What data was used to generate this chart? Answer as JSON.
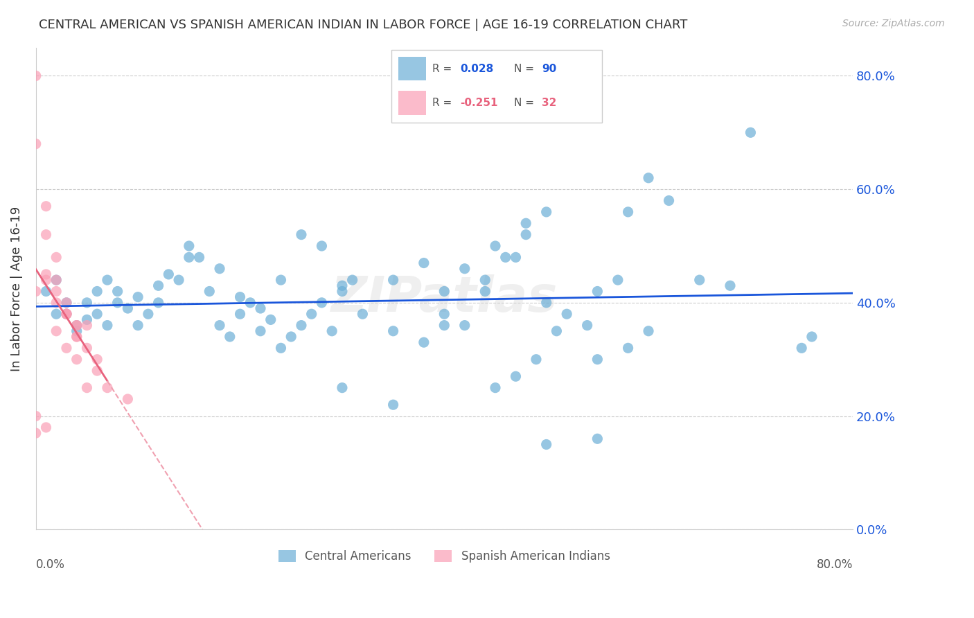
{
  "title": "CENTRAL AMERICAN VS SPANISH AMERICAN INDIAN IN LABOR FORCE | AGE 16-19 CORRELATION CHART",
  "source": "Source: ZipAtlas.com",
  "ylabel": "In Labor Force | Age 16-19",
  "ytick_values": [
    0.0,
    0.2,
    0.4,
    0.6,
    0.8
  ],
  "xlim": [
    0,
    0.8
  ],
  "ylim": [
    0,
    0.85
  ],
  "blue_R": 0.028,
  "blue_N": 90,
  "pink_R": -0.251,
  "pink_N": 32,
  "legend_label_blue": "Central Americans",
  "legend_label_pink": "Spanish American Indians",
  "blue_color": "#6baed6",
  "pink_color": "#fa9fb5",
  "blue_line_color": "#1a56db",
  "pink_line_color": "#e8627d",
  "pink_dash_color": "#f0a0b0",
  "watermark": "ZIPatlas",
  "blue_scatter_x": [
    0.02,
    0.03,
    0.01,
    0.04,
    0.05,
    0.02,
    0.03,
    0.04,
    0.05,
    0.06,
    0.07,
    0.08,
    0.06,
    0.07,
    0.08,
    0.09,
    0.1,
    0.11,
    0.12,
    0.13,
    0.1,
    0.12,
    0.14,
    0.15,
    0.16,
    0.17,
    0.18,
    0.19,
    0.2,
    0.21,
    0.22,
    0.23,
    0.24,
    0.25,
    0.26,
    0.27,
    0.28,
    0.29,
    0.3,
    0.31,
    0.15,
    0.18,
    0.2,
    0.22,
    0.24,
    0.26,
    0.28,
    0.3,
    0.32,
    0.35,
    0.38,
    0.4,
    0.35,
    0.38,
    0.4,
    0.42,
    0.44,
    0.45,
    0.47,
    0.48,
    0.4,
    0.42,
    0.44,
    0.46,
    0.48,
    0.5,
    0.45,
    0.47,
    0.49,
    0.51,
    0.5,
    0.52,
    0.54,
    0.55,
    0.57,
    0.6,
    0.62,
    0.55,
    0.58,
    0.6,
    0.65,
    0.68,
    0.7,
    0.3,
    0.35,
    0.5,
    0.55,
    0.58,
    0.75,
    0.76
  ],
  "blue_scatter_y": [
    0.38,
    0.4,
    0.42,
    0.36,
    0.4,
    0.44,
    0.38,
    0.35,
    0.37,
    0.42,
    0.44,
    0.4,
    0.38,
    0.36,
    0.42,
    0.39,
    0.41,
    0.38,
    0.43,
    0.45,
    0.36,
    0.4,
    0.44,
    0.5,
    0.48,
    0.42,
    0.36,
    0.34,
    0.38,
    0.4,
    0.35,
    0.37,
    0.32,
    0.34,
    0.36,
    0.38,
    0.4,
    0.35,
    0.42,
    0.44,
    0.48,
    0.46,
    0.41,
    0.39,
    0.44,
    0.52,
    0.5,
    0.43,
    0.38,
    0.35,
    0.33,
    0.36,
    0.44,
    0.47,
    0.42,
    0.46,
    0.44,
    0.5,
    0.48,
    0.52,
    0.38,
    0.36,
    0.42,
    0.48,
    0.54,
    0.56,
    0.25,
    0.27,
    0.3,
    0.35,
    0.4,
    0.38,
    0.36,
    0.42,
    0.44,
    0.62,
    0.58,
    0.3,
    0.32,
    0.35,
    0.44,
    0.43,
    0.7,
    0.25,
    0.22,
    0.15,
    0.16,
    0.56,
    0.32,
    0.34
  ],
  "pink_scatter_x": [
    0.0,
    0.0,
    0.01,
    0.01,
    0.02,
    0.02,
    0.03,
    0.03,
    0.04,
    0.04,
    0.0,
    0.01,
    0.02,
    0.03,
    0.04,
    0.05,
    0.0,
    0.01,
    0.02,
    0.03,
    0.04,
    0.05,
    0.06,
    0.01,
    0.02,
    0.03,
    0.04,
    0.05,
    0.06,
    0.07,
    0.09,
    0.0
  ],
  "pink_scatter_y": [
    0.8,
    0.68,
    0.52,
    0.57,
    0.44,
    0.48,
    0.4,
    0.38,
    0.36,
    0.34,
    0.2,
    0.18,
    0.35,
    0.32,
    0.3,
    0.25,
    0.42,
    0.44,
    0.4,
    0.38,
    0.34,
    0.36,
    0.3,
    0.45,
    0.42,
    0.38,
    0.36,
    0.32,
    0.28,
    0.25,
    0.23,
    0.17
  ]
}
